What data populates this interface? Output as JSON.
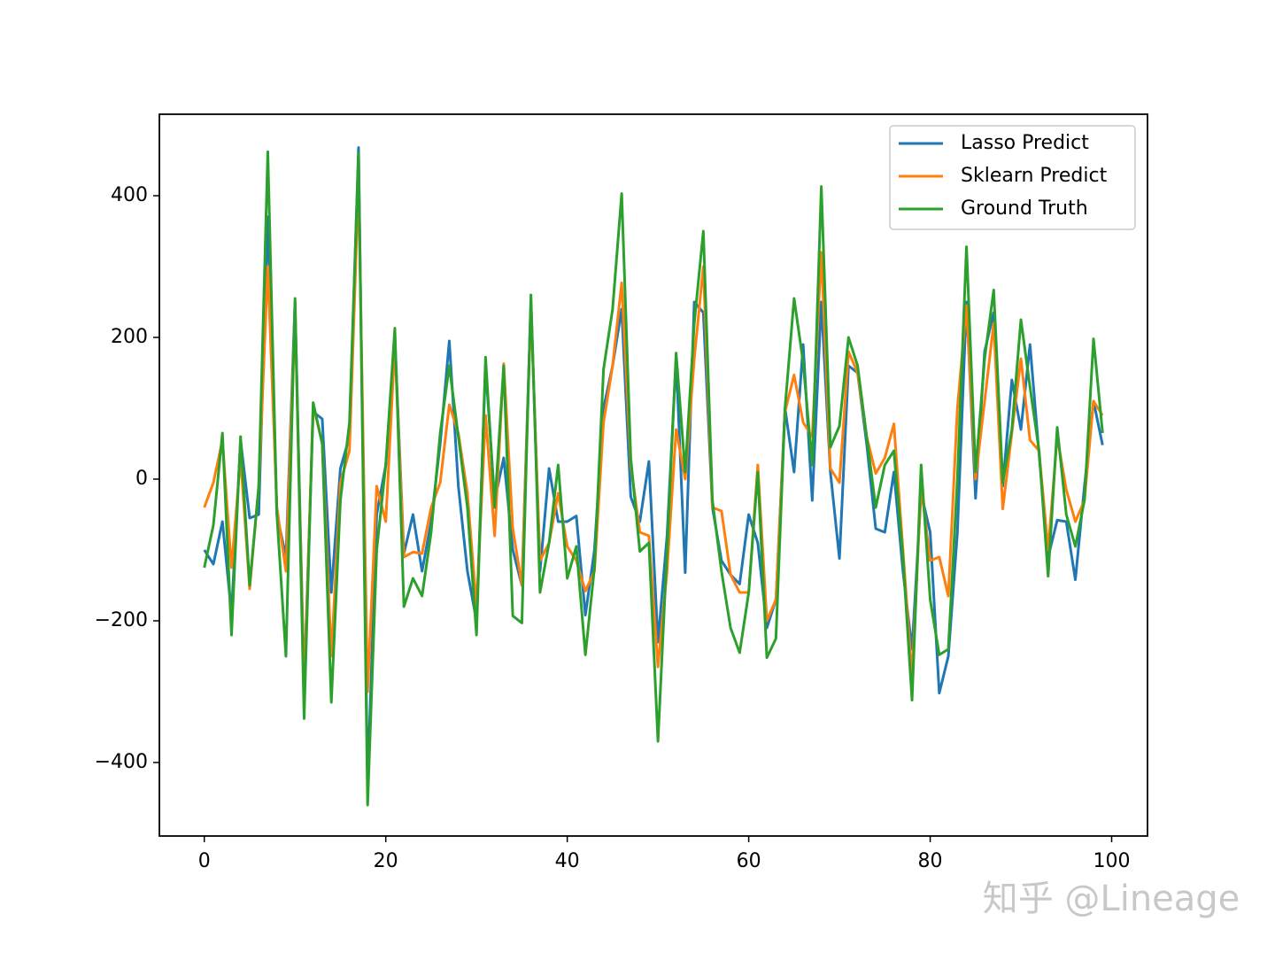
{
  "chart_data": {
    "type": "line",
    "x": [
      0,
      1,
      2,
      3,
      4,
      5,
      6,
      7,
      8,
      9,
      10,
      11,
      12,
      13,
      14,
      15,
      16,
      17,
      18,
      19,
      20,
      21,
      22,
      23,
      24,
      25,
      26,
      27,
      28,
      29,
      30,
      31,
      32,
      33,
      34,
      35,
      36,
      37,
      38,
      39,
      40,
      41,
      42,
      43,
      44,
      45,
      46,
      47,
      48,
      49,
      50,
      51,
      52,
      53,
      54,
      55,
      56,
      57,
      58,
      59,
      60,
      61,
      62,
      63,
      64,
      65,
      66,
      67,
      68,
      69,
      70,
      71,
      72,
      73,
      74,
      75,
      76,
      77,
      78,
      79,
      80,
      81,
      82,
      83,
      84,
      85,
      86,
      87,
      88,
      89,
      90,
      91,
      92,
      93,
      94,
      95,
      96,
      97,
      98,
      99
    ],
    "series": [
      {
        "name": "Lasso Predict",
        "color": "#1f77b4",
        "values": [
          -100,
          -120,
          -60,
          -190,
          55,
          -55,
          -50,
          370,
          -50,
          -110,
          250,
          -290,
          95,
          85,
          -160,
          15,
          60,
          468,
          -430,
          -50,
          20,
          200,
          -105,
          -50,
          -130,
          -60,
          50,
          195,
          -10,
          -130,
          -200,
          160,
          -30,
          30,
          -100,
          -150,
          250,
          -130,
          15,
          -60,
          -60,
          -52,
          -192,
          -100,
          100,
          160,
          240,
          -25,
          -60,
          25,
          -230,
          -80,
          170,
          -132,
          250,
          235,
          -40,
          -115,
          -135,
          -148,
          -50,
          -90,
          -210,
          -170,
          100,
          10,
          190,
          -30,
          250,
          10,
          -112,
          160,
          150,
          50,
          -70,
          -75,
          10,
          -130,
          -240,
          -20,
          -75,
          -302,
          -250,
          -75,
          250,
          -27,
          180,
          235,
          -10,
          140,
          70,
          190,
          35,
          -110,
          -58,
          -60,
          -142,
          -10,
          110,
          48
        ]
      },
      {
        "name": "Sklearn Predict",
        "color": "#ff7f0e",
        "values": [
          -40,
          -5,
          55,
          -125,
          30,
          -155,
          -10,
          300,
          -40,
          -130,
          240,
          -300,
          105,
          50,
          -250,
          -5,
          40,
          420,
          -300,
          -10,
          -60,
          190,
          -110,
          -103,
          -105,
          -40,
          -5,
          105,
          65,
          -20,
          -180,
          90,
          -80,
          163,
          -70,
          -150,
          240,
          -115,
          -90,
          -20,
          -95,
          -115,
          -158,
          -130,
          80,
          160,
          277,
          20,
          -75,
          -80,
          -265,
          -130,
          70,
          0,
          170,
          300,
          -40,
          -45,
          -135,
          -160,
          -160,
          20,
          -200,
          -170,
          95,
          147,
          80,
          60,
          320,
          15,
          -5,
          180,
          150,
          60,
          8,
          30,
          78,
          -100,
          -280,
          -10,
          -115,
          -110,
          -165,
          100,
          245,
          0,
          110,
          220,
          -42,
          65,
          170,
          55,
          40,
          -100,
          60,
          -15,
          -60,
          -30,
          110,
          90
        ]
      },
      {
        "name": "Ground Truth",
        "color": "#2ca02c",
        "values": [
          -125,
          -65,
          65,
          -220,
          60,
          -150,
          -10,
          462,
          -50,
          -250,
          255,
          -338,
          108,
          50,
          -315,
          -30,
          80,
          460,
          -460,
          -100,
          20,
          213,
          -180,
          -140,
          -165,
          -75,
          65,
          160,
          60,
          -40,
          -220,
          172,
          -40,
          160,
          -193,
          -203,
          260,
          -160,
          -90,
          20,
          -140,
          -95,
          -248,
          -125,
          155,
          240,
          403,
          30,
          -102,
          -90,
          -370,
          -100,
          178,
          10,
          220,
          350,
          -30,
          -130,
          -210,
          -245,
          -160,
          10,
          -252,
          -225,
          100,
          255,
          165,
          20,
          413,
          45,
          75,
          200,
          160,
          60,
          -40,
          20,
          40,
          -110,
          -312,
          20,
          -170,
          -248,
          -240,
          0,
          328,
          10,
          170,
          267,
          -5,
          70,
          225,
          130,
          40,
          -137,
          73,
          -50,
          -95,
          -30,
          198,
          65
        ]
      }
    ],
    "xlim": [
      -4.95,
      103.95
    ],
    "ylim": [
      -503.75,
      515
    ],
    "xticks": [
      0,
      20,
      40,
      60,
      80,
      100
    ],
    "yticks": [
      {
        "value": -400,
        "label": "−400"
      },
      {
        "value": -200,
        "label": "−200"
      },
      0,
      200,
      400
    ],
    "legend": "upper right"
  },
  "watermark": "知乎 @Lineage"
}
